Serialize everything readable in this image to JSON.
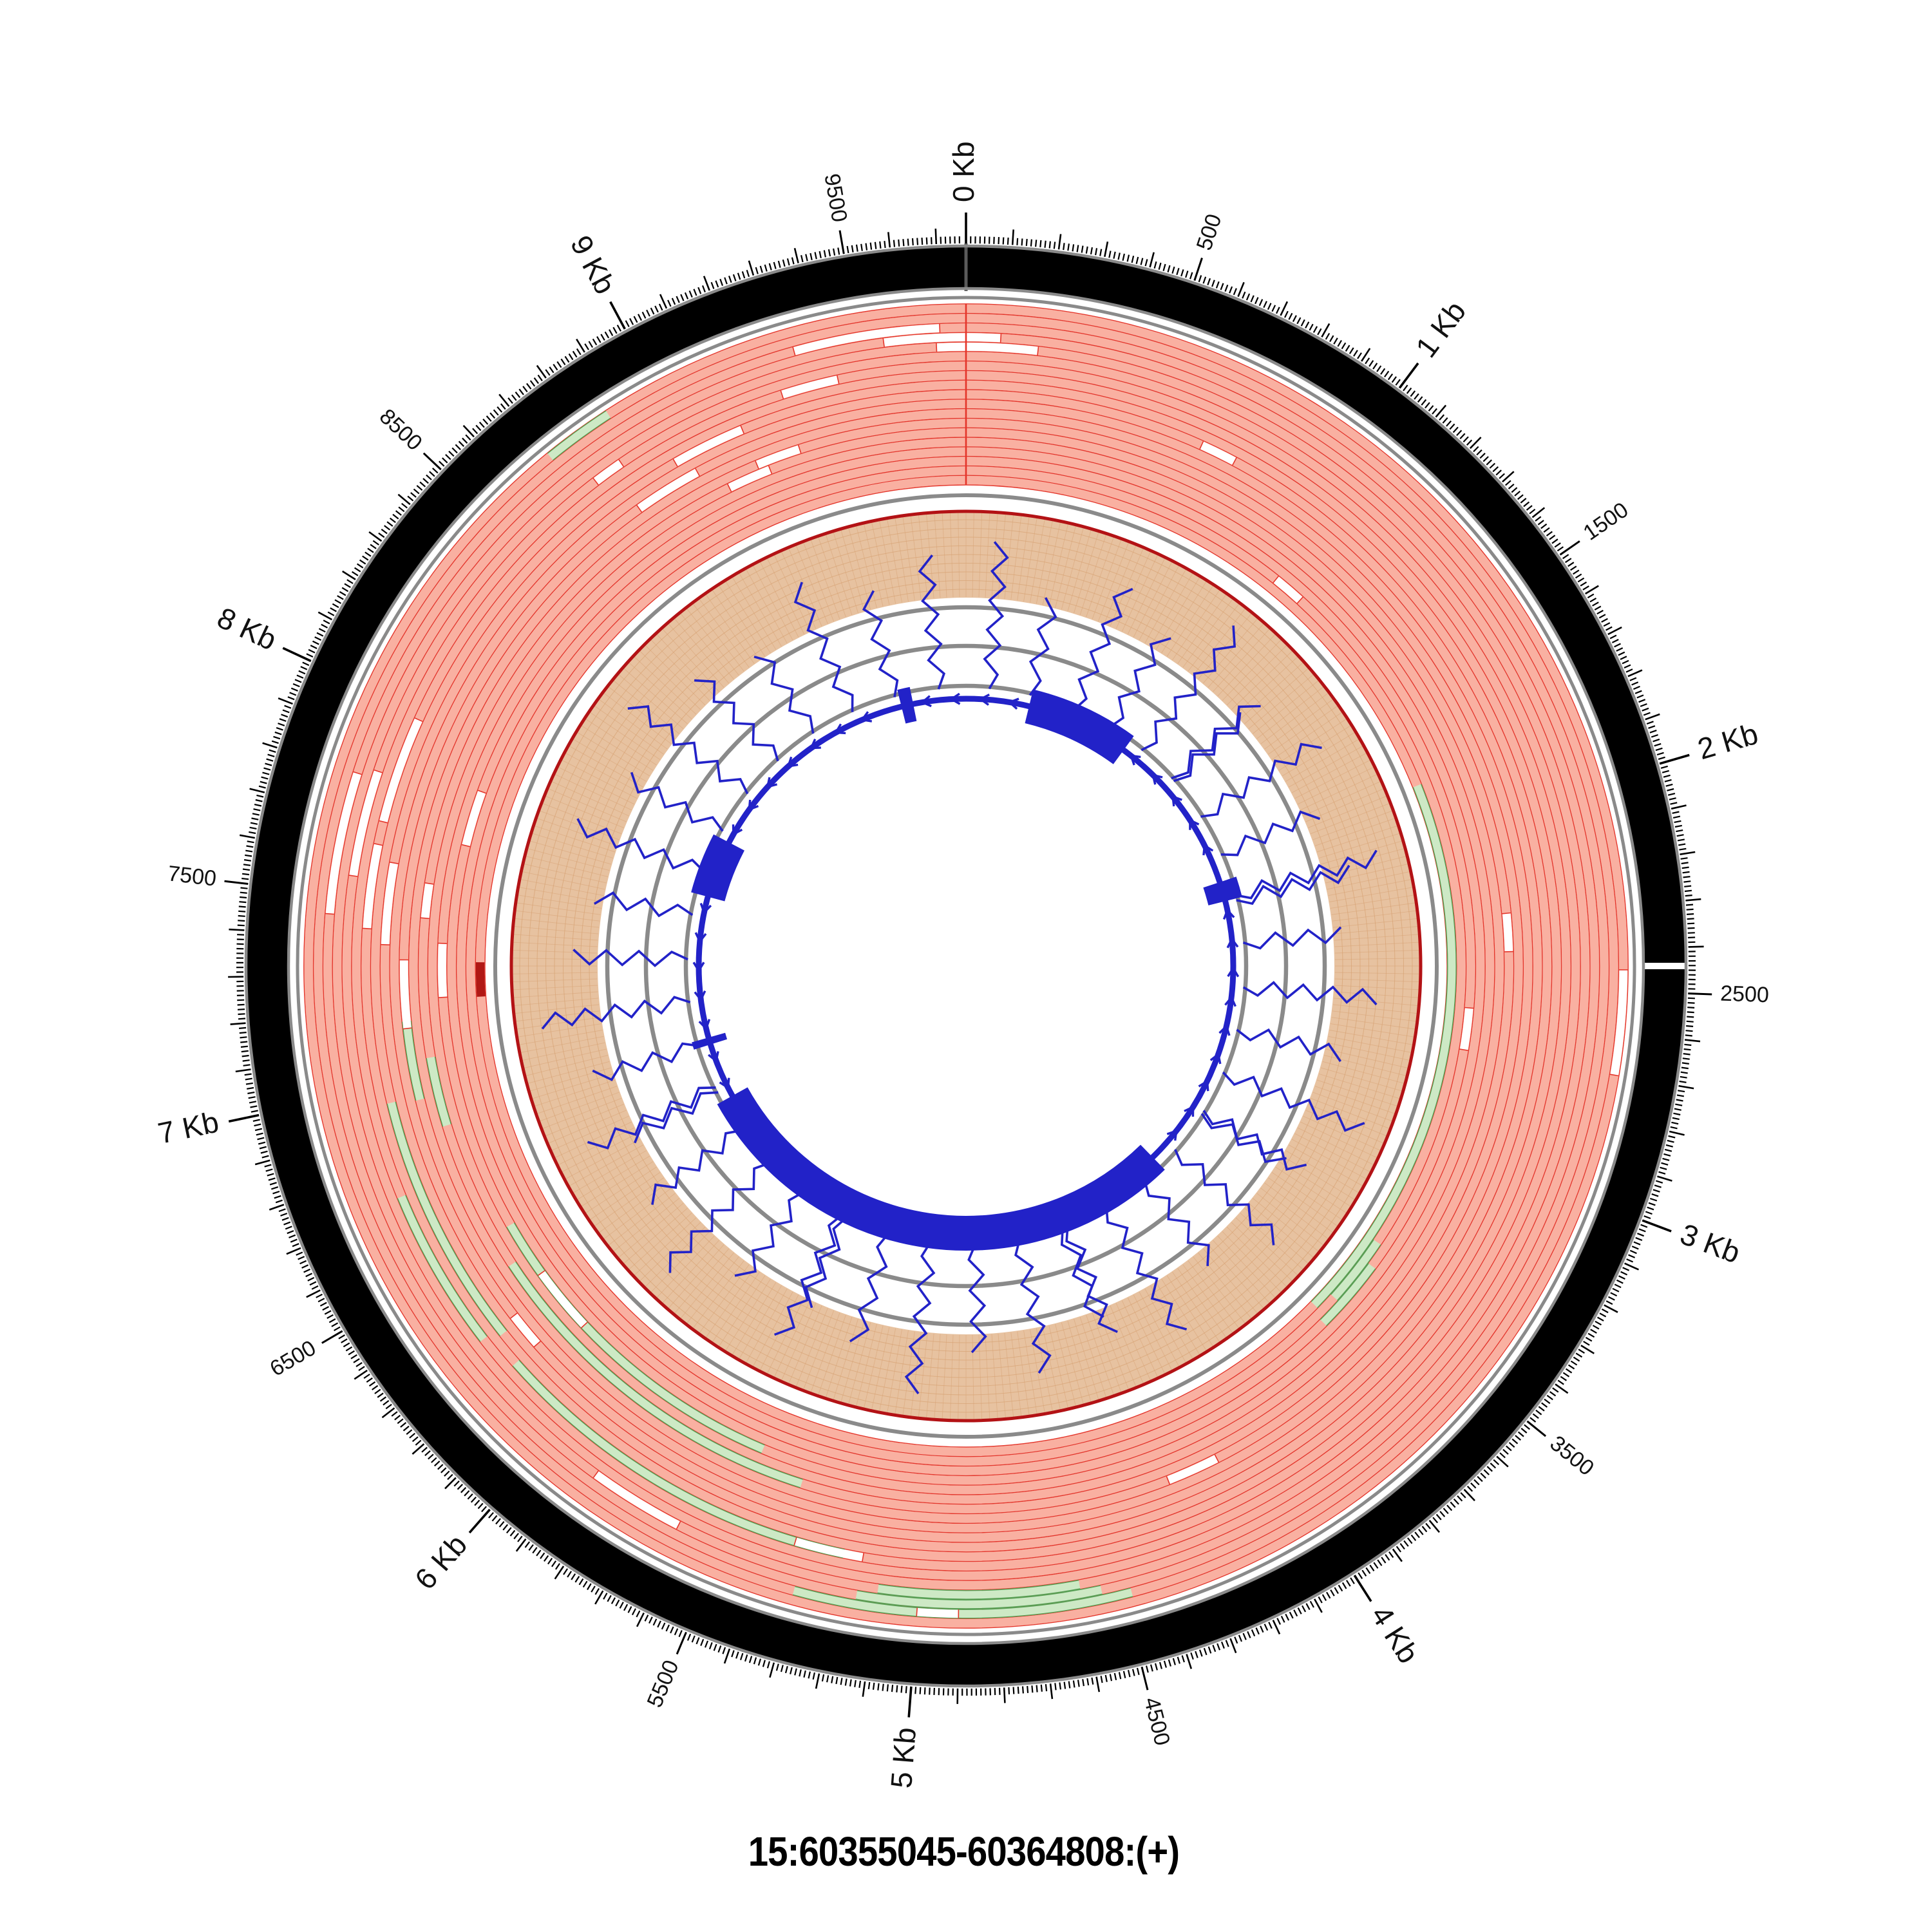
{
  "title": {
    "text": "15:60355045-60364808:(+)"
  },
  "colors": {
    "background": "#ffffff",
    "ideogram_fill": "#000000",
    "ideogram_border": "#8a8a8a",
    "junction_line": "#5a5a5a",
    "guide_gray": "#8a8a8a",
    "read_fill": "#F9B0A1",
    "read_edge": "#E4352A",
    "reverse_read_fill": "#CDE9C5",
    "reverse_read_edge": "#56A156",
    "special_read_fill": "#B01815",
    "coverage_fill": "#E7C2A0",
    "coverage_grid": "#D7A274",
    "coverage_line": "#B31215",
    "gene_blue": "#2222C8",
    "tick_color": "#000000",
    "label_color": "#111111"
  },
  "chart_data": {
    "type": "circular_genome_plot",
    "layout": "circos-like; position 0 at 12 o'clock, increasing clockwise; grid on coverage ring; radial tick labels flipped on lower half",
    "region": {
      "chrom": "15",
      "start": 60355045,
      "end": 60364808,
      "strand": "+",
      "length_bp": 9764
    },
    "axis": {
      "unit": "bp",
      "range": [
        0,
        9764
      ],
      "minor_tick_spacing": 10,
      "mid_tick_spacing": 100,
      "labeled_tick_spacing": 500,
      "major_tick_spacing": 1000,
      "major_ticks": [
        {
          "bp": 0,
          "label": "0 Kb"
        },
        {
          "bp": 1000,
          "label": "1 Kb"
        },
        {
          "bp": 2000,
          "label": "2 Kb"
        },
        {
          "bp": 3000,
          "label": "3 Kb"
        },
        {
          "bp": 4000,
          "label": "4 Kb"
        },
        {
          "bp": 5000,
          "label": "5 Kb"
        },
        {
          "bp": 6000,
          "label": "6 Kb"
        },
        {
          "bp": 7000,
          "label": "7 Kb"
        },
        {
          "bp": 8000,
          "label": "8 Kb"
        },
        {
          "bp": 9000,
          "label": "9 Kb"
        }
      ],
      "minor_labeled_ticks": [
        {
          "bp": 500,
          "label": "500"
        },
        {
          "bp": 1500,
          "label": "1500"
        },
        {
          "bp": 2500,
          "label": "2500"
        },
        {
          "bp": 3500,
          "label": "3500"
        },
        {
          "bp": 4500,
          "label": "4500"
        },
        {
          "bp": 5500,
          "label": "5500"
        },
        {
          "bp": 6500,
          "label": "6500"
        },
        {
          "bp": 7500,
          "label": "7500"
        },
        {
          "bp": 8500,
          "label": "8500"
        },
        {
          "bp": 9500,
          "label": "9500"
        }
      ]
    },
    "ideogram_ring": {
      "junction_bp": 0,
      "white_break_bp": 2441
    },
    "reads_track": {
      "rows": 19,
      "note": "stacked read pileup; forward reads salmon with red edges, reverse reads green, one dark-red special read; white gaps are uncovered stretches; red radial junction line at bp 0",
      "green_segments": [
        [
          0,
          1850,
          3640
        ],
        [
          1,
          3360,
          3580
        ],
        [
          2,
          3430,
          3660
        ],
        [
          4,
          5500,
          6520
        ],
        [
          6,
          5360,
          6420
        ],
        [
          6,
          6860,
          7060
        ],
        [
          8,
          6950,
          7170
        ],
        [
          11,
          6280,
          6960
        ],
        [
          12,
          5200,
          6200
        ],
        [
          13,
          6300,
          6720
        ],
        [
          15,
          4600,
          5100
        ],
        [
          16,
          4550,
          5150
        ],
        [
          17,
          4480,
          5300
        ],
        [
          18,
          8700,
          8870
        ]
      ],
      "white_gaps": [
        [
          18,
          2450,
          2700
        ],
        [
          6,
          2290,
          2400
        ],
        [
          2,
          2570,
          2700
        ],
        [
          10,
          8950,
          9150
        ],
        [
          13,
          8750,
          8830
        ],
        [
          8,
          8800,
          8990
        ],
        [
          6,
          9150,
          9280
        ],
        [
          16,
          7450,
          7800
        ],
        [
          14,
          7550,
          7820
        ],
        [
          12,
          7700,
          7980
        ],
        [
          4,
          6150,
          6350
        ],
        [
          9,
          6200,
          6300
        ],
        [
          12,
          5150,
          5330
        ],
        [
          17,
          4900,
          5000
        ],
        [
          15,
          5620,
          5860
        ],
        [
          5,
          9050,
          9180
        ],
        [
          7,
          4150,
          4300
        ],
        [
          1,
          1050,
          1150
        ],
        [
          9,
          660,
          760
        ],
        [
          10,
          7380,
          7600
        ],
        [
          12,
          7420,
          7640
        ],
        [
          8,
          7150,
          7340
        ],
        [
          4,
          7230,
          7390
        ],
        [
          6,
          7460,
          7560
        ],
        [
          3,
          7690,
          7860
        ],
        [
          16,
          9340,
          9700
        ],
        [
          15,
          9560,
          9850
        ],
        [
          14,
          9690,
          9945
        ],
        [
          12,
          9280,
          9430
        ]
      ],
      "red_segments": [
        [
          0,
          7225,
          7335
        ]
      ]
    },
    "coverage_track": {
      "style": "filled annulus with fine grid and dark-red coverage line at outer edge",
      "value": "constant (saturated) around the whole region"
    },
    "gene_track": {
      "strand_arrows": "counterclockwise",
      "exons_bp": [
        [
          370,
          980
        ],
        [
          1945,
          2060
        ],
        [
          3680,
          6535
        ],
        [
          6860,
          6902
        ],
        [
          7730,
          8070
        ],
        [
          9385,
          9455
        ]
      ]
    },
    "guide_circles": {
      "inner_gray_radii": [
        435,
        497,
        557
      ],
      "separators": [
        731,
        1038
      ]
    },
    "insertion_marks": [
      [
        130,
        660
      ],
      [
        360,
        585
      ],
      [
        620,
        640
      ],
      [
        840,
        600
      ],
      [
        1060,
        672
      ],
      [
        1290,
        610
      ],
      [
        1310,
        580
      ],
      [
        1560,
        648
      ],
      [
        1800,
        595
      ],
      [
        2040,
        662
      ],
      [
        2070,
        615
      ],
      [
        2310,
        585
      ],
      [
        2560,
        640
      ],
      [
        2800,
        600
      ],
      [
        3050,
        665
      ],
      [
        3290,
        612
      ],
      [
        3310,
        580
      ],
      [
        3560,
        645
      ],
      [
        3800,
        598
      ],
      [
        4060,
        660
      ],
      [
        4300,
        615
      ],
      [
        4330,
        585
      ],
      [
        4580,
        642
      ],
      [
        4830,
        600
      ],
      [
        5080,
        668
      ],
      [
        5320,
        610
      ],
      [
        5570,
        582
      ],
      [
        5600,
        645
      ],
      [
        5850,
        600
      ],
      [
        6100,
        662
      ],
      [
        6340,
        612
      ],
      [
        6590,
        583
      ],
      [
        6620,
        648
      ],
      [
        6870,
        602
      ],
      [
        7120,
        665
      ],
      [
        7360,
        610
      ],
      [
        7610,
        585
      ],
      [
        7860,
        645
      ],
      [
        8110,
        600
      ],
      [
        8360,
        660
      ],
      [
        8610,
        612
      ],
      [
        8860,
        582
      ],
      [
        9110,
        648
      ],
      [
        9360,
        600
      ],
      [
        9610,
        640
      ]
    ]
  }
}
